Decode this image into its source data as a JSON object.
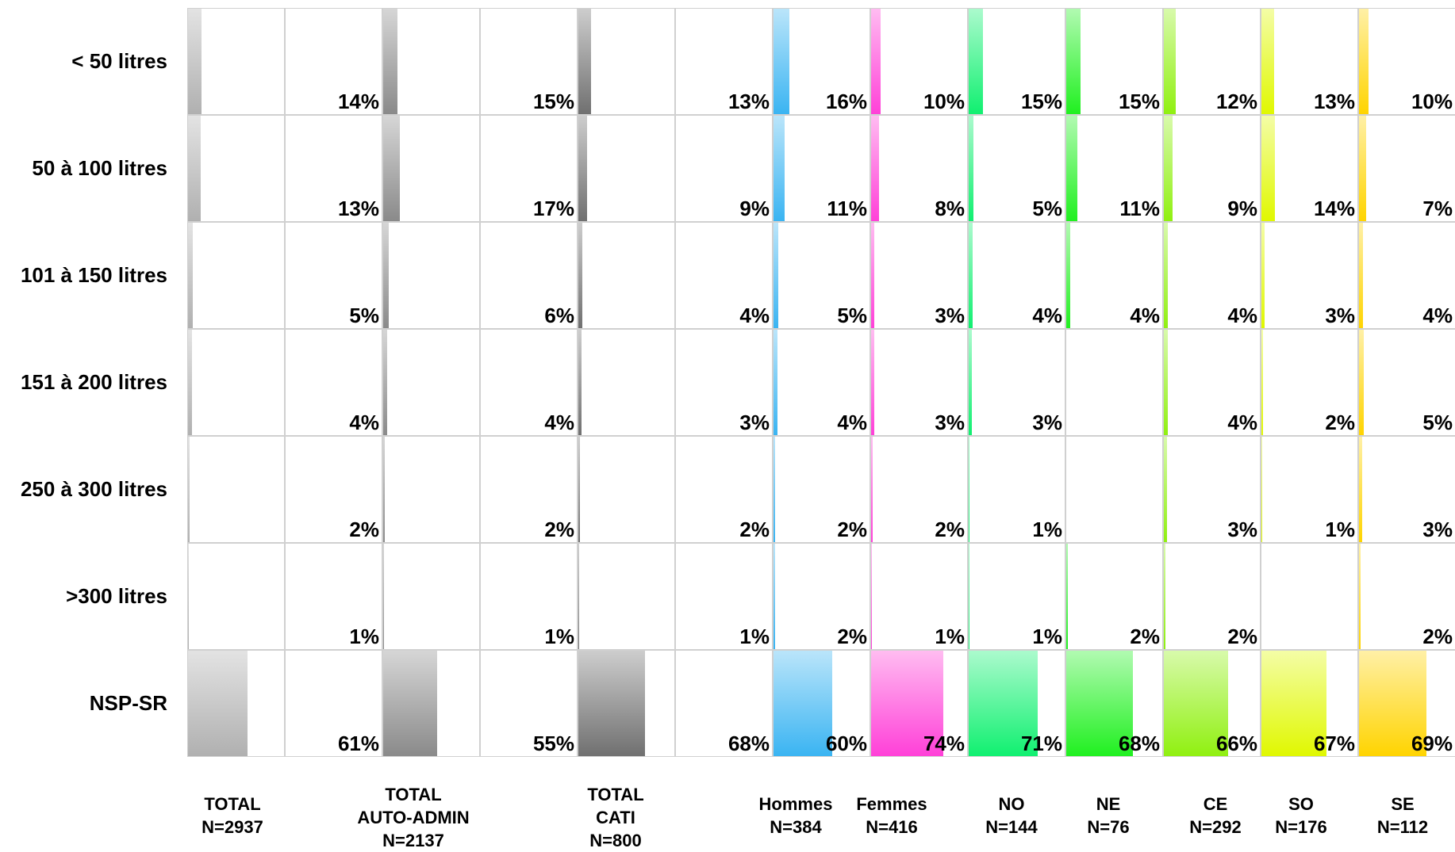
{
  "chart_data": {
    "type": "table",
    "rows": [
      "< 50 litres",
      "50 à 100 litres",
      "101 à 150 litres",
      "151 à 200 litres",
      "250 à 300 litres",
      ">300 litres",
      "NSP-SR"
    ],
    "columns": [
      {
        "label": [
          "TOTAL",
          "N=2937"
        ],
        "color": "#b0b0b0",
        "values": [
          14,
          13,
          5,
          4,
          2,
          1,
          61
        ],
        "labels": [
          "14%",
          "13%",
          "5%",
          "4%",
          "2%",
          "1%",
          "61%"
        ]
      },
      {
        "label": [
          "TOTAL",
          "AUTO-ADMIN",
          "N=2137"
        ],
        "color": "#8a8a8a",
        "values": [
          15,
          17,
          6,
          4,
          2,
          1,
          55
        ],
        "labels": [
          "15%",
          "17%",
          "6%",
          "4%",
          "2%",
          "1%",
          "55%"
        ]
      },
      {
        "label": [
          "TOTAL",
          "CATI",
          "N=800"
        ],
        "color": "#707070",
        "values": [
          13,
          9,
          4,
          3,
          2,
          1,
          68
        ],
        "labels": [
          "13%",
          "9%",
          "4%",
          "3%",
          "2%",
          "1%",
          "68%"
        ]
      },
      {
        "label": [
          "Hommes",
          "N=384"
        ],
        "color": "#3ab4f2",
        "values": [
          16,
          11,
          5,
          4,
          2,
          2,
          60
        ],
        "labels": [
          "16%",
          "11%",
          "5%",
          "4%",
          "2%",
          "2%",
          "60%"
        ]
      },
      {
        "label": [
          "Femmes",
          "N=416"
        ],
        "color": "#ff40d8",
        "values": [
          10,
          8,
          3,
          3,
          2,
          1,
          74
        ],
        "labels": [
          "10%",
          "8%",
          "3%",
          "3%",
          "2%",
          "1%",
          "74%"
        ]
      },
      {
        "label": [
          "NO",
          "N=144"
        ],
        "color": "#10f070",
        "values": [
          15,
          5,
          4,
          3,
          1,
          1,
          71
        ],
        "labels": [
          "15%",
          "5%",
          "4%",
          "3%",
          "1%",
          "1%",
          "71%"
        ]
      },
      {
        "label": [
          "NE",
          "N=76"
        ],
        "color": "#20f020",
        "values": [
          15,
          11,
          4,
          null,
          null,
          2,
          68
        ],
        "labels": [
          "15%",
          "11%",
          "4%",
          "",
          "",
          "2%",
          "68%"
        ]
      },
      {
        "label": [
          "CE",
          "N=292"
        ],
        "color": "#90f010",
        "values": [
          12,
          9,
          4,
          4,
          3,
          2,
          66
        ],
        "labels": [
          "12%",
          "9%",
          "4%",
          "4%",
          "3%",
          "2%",
          "66%"
        ]
      },
      {
        "label": [
          "SO",
          "N=176"
        ],
        "color": "#e0f800",
        "values": [
          13,
          14,
          3,
          2,
          1,
          null,
          67
        ],
        "labels": [
          "13%",
          "14%",
          "3%",
          "2%",
          "1%",
          "",
          "67%"
        ]
      },
      {
        "label": [
          "SE",
          "N=112"
        ],
        "color": "#ffd400",
        "values": [
          10,
          7,
          4,
          5,
          3,
          2,
          69
        ],
        "labels": [
          "10%",
          "7%",
          "4%",
          "5%",
          "3%",
          "2%",
          "69%"
        ]
      }
    ]
  }
}
